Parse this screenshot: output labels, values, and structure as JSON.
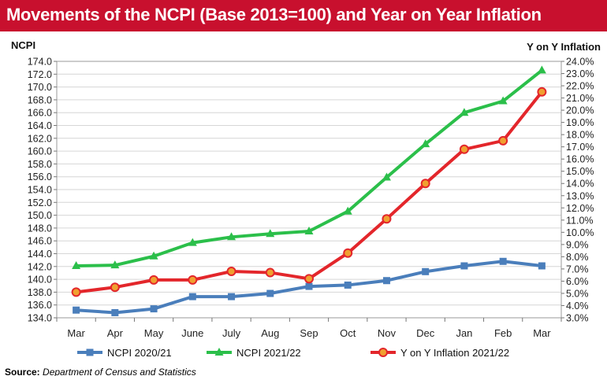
{
  "header": {
    "title": "Movements of the NCPI (Base 2013=100) and Year on Year Inflation"
  },
  "source": {
    "label": "Source:",
    "text": "Department of Census and Statistics"
  },
  "chart_data": {
    "type": "line",
    "categories": [
      "Mar",
      "Apr",
      "May",
      "June",
      "July",
      "Aug",
      "Sep",
      "Oct",
      "Nov",
      "Dec",
      "Jan",
      "Feb",
      "Mar"
    ],
    "left_axis": {
      "label": "NCPI",
      "ylim": [
        134.0,
        174.0
      ],
      "step": 2.0,
      "ticks": [
        "134.0",
        "136.0",
        "138.0",
        "140.0",
        "142.0",
        "144.0",
        "146.0",
        "148.0",
        "150.0",
        "152.0",
        "154.0",
        "156.0",
        "158.0",
        "160.0",
        "162.0",
        "164.0",
        "166.0",
        "168.0",
        "170.0",
        "172.0",
        "174.0"
      ]
    },
    "right_axis": {
      "label": "Y on Y Inflation",
      "ylim": [
        3.0,
        24.0
      ],
      "step": 1.0,
      "ticks": [
        "3.0%",
        "4.0%",
        "5.0%",
        "6.0%",
        "7.0%",
        "8.0%",
        "9.0%",
        "10.0%",
        "11.0%",
        "12.0%",
        "13.0%",
        "14.0%",
        "15.0%",
        "16.0%",
        "17.0%",
        "18.0%",
        "19.0%",
        "20.0%",
        "21.0%",
        "22.0%",
        "23.0%",
        "24.0%"
      ]
    },
    "grid": true,
    "legend_position": "bottom",
    "series": [
      {
        "name": "NCPI 2020/21",
        "axis": "left",
        "marker": "square",
        "color": "#4a7ebb",
        "values": [
          135.2,
          134.8,
          135.4,
          137.3,
          137.3,
          137.8,
          138.9,
          139.1,
          139.8,
          141.2,
          142.1,
          142.8,
          142.1
        ]
      },
      {
        "name": "NCPI 2021/22",
        "axis": "left",
        "marker": "triangle",
        "color": "#2bbf4a",
        "values": [
          142.1,
          142.2,
          143.6,
          145.7,
          146.6,
          147.1,
          147.5,
          150.6,
          155.9,
          161.1,
          166.0,
          167.8,
          172.6
        ]
      },
      {
        "name": "Y on Y Inflation 2021/22",
        "axis": "right",
        "marker": "circle",
        "color": "#e3262b",
        "values": [
          5.1,
          5.5,
          6.1,
          6.1,
          6.8,
          6.7,
          6.2,
          8.3,
          11.1,
          14.0,
          16.8,
          17.5,
          21.5
        ]
      }
    ]
  }
}
